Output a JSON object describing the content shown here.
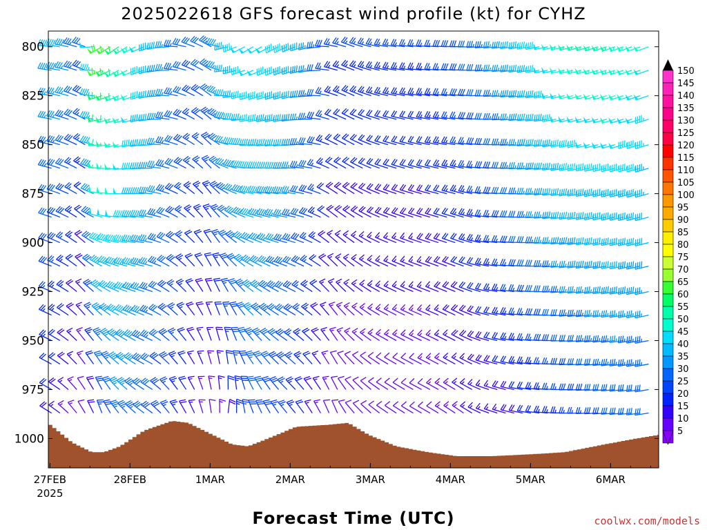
{
  "chart_data": {
    "type": "wind-profile",
    "title": "2025022618 GFS forecast wind profile (kt) for CYHZ",
    "xlabel": "Forecast Time (UTC)",
    "ylabel": "",
    "credit": "coolwx.com/models",
    "y_ticks": [
      "800",
      "825",
      "850",
      "875",
      "900",
      "925",
      "950",
      "975",
      "1000"
    ],
    "y_tick_values": [
      800,
      825,
      850,
      875,
      900,
      925,
      950,
      975,
      1000
    ],
    "ylim": [
      792,
      1015
    ],
    "x_ticks": [
      {
        "label": "27FEB",
        "sub": "2025",
        "day": 27.5
      },
      {
        "label": "28FEB",
        "sub": "",
        "day": 28.5
      },
      {
        "label": "1MAR",
        "sub": "",
        "day": 29.5
      },
      {
        "label": "2MAR",
        "sub": "",
        "day": 30.5
      },
      {
        "label": "3MAR",
        "sub": "",
        "day": 31.5
      },
      {
        "label": "4MAR",
        "sub": "",
        "day": 32.5
      },
      {
        "label": "5MAR",
        "sub": "",
        "day": 33.5
      },
      {
        "label": "6MAR",
        "sub": "",
        "day": 34.5
      }
    ],
    "xlim": [
      27.48,
      35.1
    ],
    "levels_hpa": [
      800,
      812,
      825,
      837,
      850,
      862,
      875,
      887,
      900,
      912,
      925,
      937,
      950,
      962,
      975,
      987
    ],
    "surface_pressure": [
      {
        "day": 27.48,
        "p": 993
      },
      {
        "day": 27.75,
        "p": 1002
      },
      {
        "day": 28.0,
        "p": 1007
      },
      {
        "day": 28.15,
        "p": 1007
      },
      {
        "day": 28.35,
        "p": 1004
      },
      {
        "day": 28.65,
        "p": 996
      },
      {
        "day": 29.0,
        "p": 991
      },
      {
        "day": 29.2,
        "p": 992
      },
      {
        "day": 29.5,
        "p": 998
      },
      {
        "day": 29.75,
        "p": 1003
      },
      {
        "day": 29.95,
        "p": 1004
      },
      {
        "day": 30.2,
        "p": 1000
      },
      {
        "day": 30.55,
        "p": 994
      },
      {
        "day": 30.95,
        "p": 993
      },
      {
        "day": 31.2,
        "p": 992
      },
      {
        "day": 31.45,
        "p": 998
      },
      {
        "day": 31.8,
        "p": 1004
      },
      {
        "day": 32.2,
        "p": 1007
      },
      {
        "day": 32.55,
        "p": 1009
      },
      {
        "day": 33.0,
        "p": 1009
      },
      {
        "day": 33.5,
        "p": 1008
      },
      {
        "day": 33.9,
        "p": 1007
      },
      {
        "day": 34.4,
        "p": 1003
      },
      {
        "day": 34.8,
        "p": 1000
      },
      {
        "day": 35.1,
        "p": 998
      }
    ],
    "wind_phases": [
      {
        "day": 27.48,
        "dir_lo": 300,
        "dir_hi": 275,
        "spd_lo": 20,
        "spd_hi": 40
      },
      {
        "day": 27.7,
        "dir_lo": 310,
        "dir_hi": 280,
        "spd_lo": 15,
        "spd_hi": 40
      },
      {
        "day": 27.95,
        "dir_lo": 330,
        "dir_hi": 290,
        "spd_lo": 10,
        "spd_hi": 30
      },
      {
        "day": 28.15,
        "dir_lo": 340,
        "dir_hi": 240,
        "spd_lo": 25,
        "spd_hi": 70
      },
      {
        "day": 28.4,
        "dir_lo": 320,
        "dir_hi": 235,
        "spd_lo": 35,
        "spd_hi": 60
      },
      {
        "day": 28.75,
        "dir_lo": 305,
        "dir_hi": 250,
        "spd_lo": 30,
        "spd_hi": 45
      },
      {
        "day": 29.05,
        "dir_lo": 325,
        "dir_hi": 270,
        "spd_lo": 25,
        "spd_hi": 35
      },
      {
        "day": 29.3,
        "dir_lo": 335,
        "dir_hi": 290,
        "spd_lo": 15,
        "spd_hi": 30
      },
      {
        "day": 29.55,
        "dir_lo": 355,
        "dir_hi": 300,
        "spd_lo": 10,
        "spd_hi": 35
      },
      {
        "day": 29.75,
        "dir_lo": 10,
        "dir_hi": 250,
        "spd_lo": 20,
        "spd_hi": 45
      },
      {
        "day": 30.05,
        "dir_lo": 340,
        "dir_hi": 240,
        "spd_lo": 30,
        "spd_hi": 50
      },
      {
        "day": 30.5,
        "dir_lo": 320,
        "dir_hi": 245,
        "spd_lo": 25,
        "spd_hi": 45
      },
      {
        "day": 30.85,
        "dir_lo": 330,
        "dir_hi": 260,
        "spd_lo": 15,
        "spd_hi": 35
      },
      {
        "day": 31.05,
        "dir_lo": 340,
        "dir_hi": 280,
        "spd_lo": 10,
        "spd_hi": 25
      },
      {
        "day": 31.3,
        "dir_lo": 320,
        "dir_hi": 290,
        "spd_lo": 10,
        "spd_hi": 25
      },
      {
        "day": 31.7,
        "dir_lo": 305,
        "dir_hi": 280,
        "spd_lo": 10,
        "spd_hi": 25
      },
      {
        "day": 32.2,
        "dir_lo": 300,
        "dir_hi": 275,
        "spd_lo": 10,
        "spd_hi": 25
      },
      {
        "day": 32.7,
        "dir_lo": 305,
        "dir_hi": 270,
        "spd_lo": 15,
        "spd_hi": 30
      },
      {
        "day": 33.0,
        "dir_lo": 290,
        "dir_hi": 265,
        "spd_lo": 15,
        "spd_hi": 35
      },
      {
        "day": 33.5,
        "dir_lo": 280,
        "dir_hi": 260,
        "spd_lo": 20,
        "spd_hi": 45
      },
      {
        "day": 34.0,
        "dir_lo": 270,
        "dir_hi": 255,
        "spd_lo": 25,
        "spd_hi": 55
      },
      {
        "day": 34.6,
        "dir_lo": 265,
        "dir_hi": 250,
        "spd_lo": 30,
        "spd_hi": 55
      },
      {
        "day": 35.1,
        "dir_lo": 260,
        "dir_hi": 250,
        "spd_lo": 30,
        "spd_hi": 50
      }
    ],
    "colorbar": {
      "labels": [
        "150",
        "145",
        "140",
        "135",
        "130",
        "125",
        "120",
        "115",
        "110",
        "105",
        "100",
        "95",
        "90",
        "85",
        "80",
        "75",
        "70",
        "65",
        "60",
        "55",
        "50",
        "45",
        "40",
        "35",
        "30",
        "25",
        "20",
        "15",
        "10",
        "5"
      ],
      "values": [
        150,
        145,
        140,
        135,
        130,
        125,
        120,
        115,
        110,
        105,
        100,
        95,
        90,
        85,
        80,
        75,
        70,
        65,
        60,
        55,
        50,
        45,
        40,
        35,
        30,
        25,
        20,
        15,
        10,
        5
      ],
      "colors": [
        "#ff33cc",
        "#ff22b8",
        "#ff11a0",
        "#ff0088",
        "#ff0066",
        "#ff0044",
        "#ff0000",
        "#ff3300",
        "#ff5500",
        "#ff7700",
        "#ff9900",
        "#ffaa00",
        "#ffcc00",
        "#ffee00",
        "#ffff00",
        "#ccff33",
        "#99ff33",
        "#33ff33",
        "#00ff66",
        "#00ffaa",
        "#00ffcc",
        "#00ddff",
        "#00bbff",
        "#0099ff",
        "#0066ff",
        "#0044ff",
        "#0022ff",
        "#3300ff",
        "#6600ff",
        "#8800ff"
      ]
    },
    "colors": {
      "terrain": "#a0522d",
      "background": "#ffffff",
      "axis": "#000000",
      "credit": "#cc3333"
    }
  }
}
